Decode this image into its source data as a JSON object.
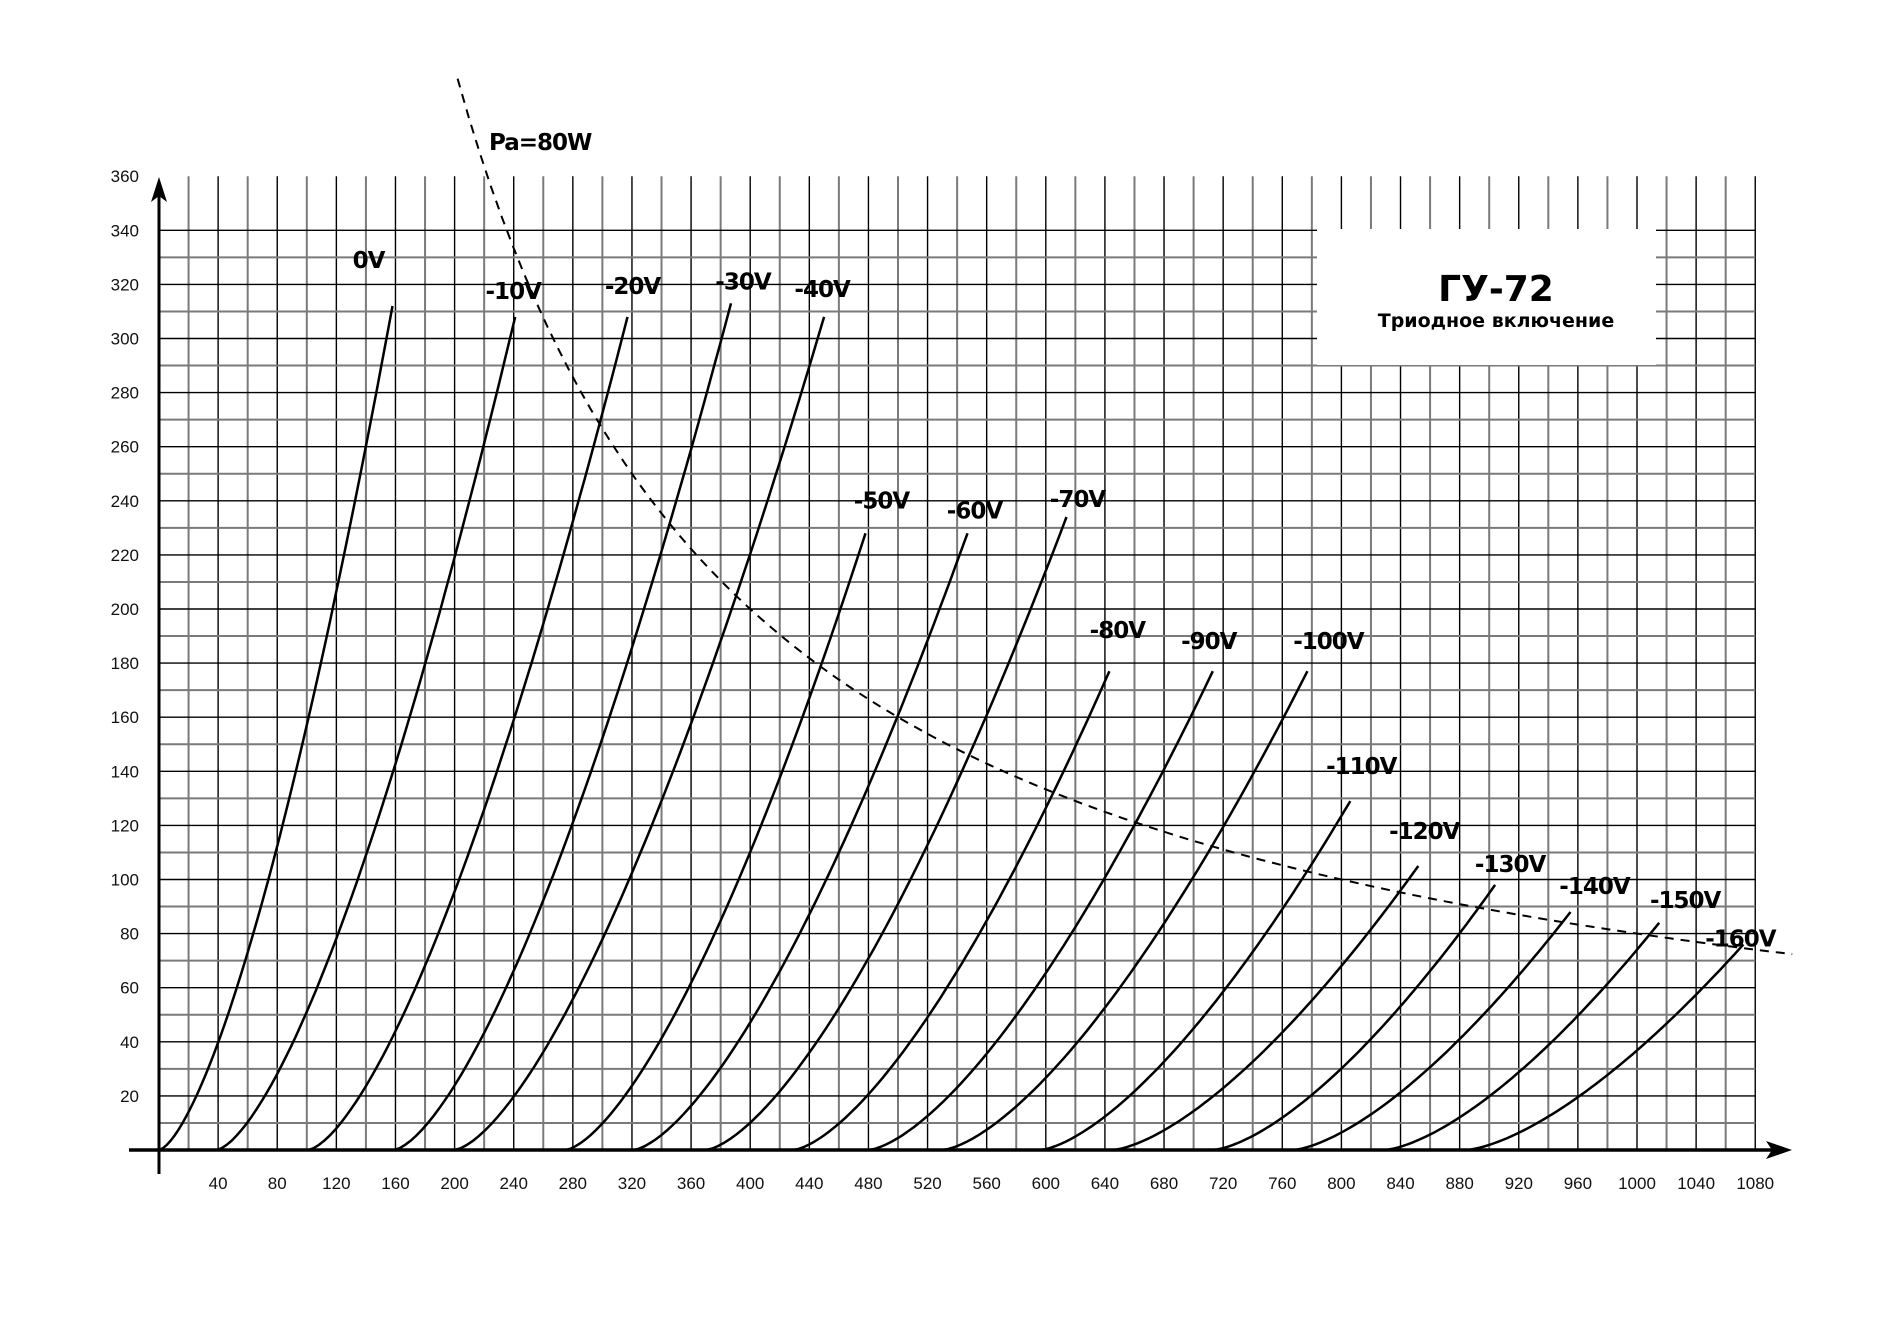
{
  "chart_data": {
    "type": "line",
    "title": "ГУ-72",
    "subtitle": "Триодное включение",
    "xlabel": "",
    "ylabel": "",
    "xlim": [
      0,
      1080
    ],
    "ylim": [
      0,
      360
    ],
    "x_ticks": [
      40,
      80,
      120,
      160,
      200,
      240,
      280,
      320,
      360,
      400,
      440,
      480,
      520,
      560,
      600,
      640,
      680,
      720,
      760,
      800,
      840,
      880,
      920,
      960,
      1000,
      1040,
      1080
    ],
    "y_ticks": [
      20,
      40,
      60,
      80,
      100,
      120,
      140,
      160,
      180,
      200,
      220,
      240,
      260,
      280,
      300,
      320,
      340,
      360
    ],
    "grid": true,
    "grid_minor_x": 20,
    "grid_minor_y": 10,
    "series": [
      {
        "name": "0V",
        "points": [
          [
            0,
            0
          ],
          [
            158,
            312
          ]
        ]
      },
      {
        "name": "-10V",
        "points": [
          [
            39,
            0
          ],
          [
            241,
            308
          ]
        ]
      },
      {
        "name": "-20V",
        "points": [
          [
            101,
            0
          ],
          [
            317,
            308
          ]
        ]
      },
      {
        "name": "-30V",
        "points": [
          [
            159,
            0
          ],
          [
            387,
            313
          ]
        ]
      },
      {
        "name": "-40V",
        "points": [
          [
            200,
            0
          ],
          [
            450,
            308
          ]
        ]
      },
      {
        "name": "-50V",
        "points": [
          [
            275,
            0
          ],
          [
            478,
            228
          ]
        ]
      },
      {
        "name": "-60V",
        "points": [
          [
            321,
            0
          ],
          [
            547,
            228
          ]
        ]
      },
      {
        "name": "-70V",
        "points": [
          [
            370,
            0
          ],
          [
            614,
            234
          ]
        ]
      },
      {
        "name": "-80V",
        "points": [
          [
            429,
            0
          ],
          [
            643,
            177
          ]
        ]
      },
      {
        "name": "-90V",
        "points": [
          [
            480,
            0
          ],
          [
            713,
            177
          ]
        ]
      },
      {
        "name": "-100V",
        "points": [
          [
            530,
            0
          ],
          [
            777,
            177
          ]
        ]
      },
      {
        "name": "-110V",
        "points": [
          [
            596,
            0
          ],
          [
            806,
            129
          ]
        ]
      },
      {
        "name": "-120V",
        "points": [
          [
            645,
            0
          ],
          [
            852,
            105
          ]
        ]
      },
      {
        "name": "-130V",
        "points": [
          [
            713,
            0
          ],
          [
            904,
            98
          ]
        ]
      },
      {
        "name": "-140V",
        "points": [
          [
            767,
            0
          ],
          [
            955,
            88
          ]
        ]
      },
      {
        "name": "-150V",
        "points": [
          [
            829,
            0
          ],
          [
            1015,
            84
          ]
        ]
      },
      {
        "name": "-160V",
        "points": [
          [
            884,
            0
          ],
          [
            1072,
            76
          ]
        ]
      }
    ],
    "power_limit": {
      "label": "Pa=80W",
      "watts": 80,
      "x_range": [
        202,
        1105
      ],
      "style": "dashed"
    },
    "colors": {
      "curves": "#000000",
      "grid_major": "#000000",
      "grid_minor": "#7a7a7a",
      "background": "#ffffff"
    }
  }
}
